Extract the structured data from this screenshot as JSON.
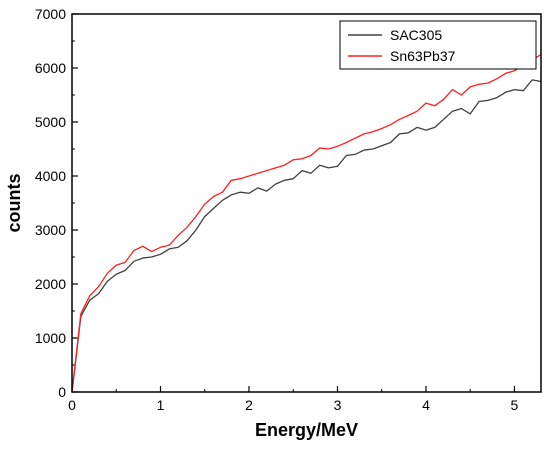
{
  "chart_data": {
    "type": "line",
    "title": "",
    "xlabel": "Energy/MeV",
    "ylabel": "counts",
    "xlim": [
      0,
      5.3
    ],
    "ylim": [
      0,
      7000
    ],
    "x_ticks": [
      0,
      1,
      2,
      3,
      4,
      5
    ],
    "y_ticks": [
      0,
      1000,
      2000,
      3000,
      4000,
      5000,
      6000,
      7000
    ],
    "grid": false,
    "legend_position": "top-right",
    "series": [
      {
        "name": "SAC305",
        "color": "#404040",
        "x": [
          0,
          0.1,
          0.2,
          0.3,
          0.4,
          0.5,
          0.6,
          0.7,
          0.8,
          0.9,
          1.0,
          1.1,
          1.2,
          1.3,
          1.4,
          1.5,
          1.6,
          1.7,
          1.8,
          1.9,
          2.0,
          2.1,
          2.2,
          2.3,
          2.4,
          2.5,
          2.6,
          2.7,
          2.8,
          2.9,
          3.0,
          3.1,
          3.2,
          3.3,
          3.4,
          3.5,
          3.6,
          3.7,
          3.8,
          3.9,
          4.0,
          4.1,
          4.2,
          4.3,
          4.4,
          4.5,
          4.6,
          4.7,
          4.8,
          4.9,
          5.0,
          5.1,
          5.2,
          5.3
        ],
        "y": [
          0,
          1400,
          1700,
          1820,
          2050,
          2180,
          2250,
          2420,
          2480,
          2500,
          2550,
          2650,
          2680,
          2800,
          3000,
          3250,
          3400,
          3550,
          3650,
          3700,
          3680,
          3780,
          3720,
          3850,
          3920,
          3950,
          4100,
          4050,
          4200,
          4150,
          4180,
          4380,
          4400,
          4480,
          4500,
          4560,
          4620,
          4780,
          4800,
          4900,
          4850,
          4900,
          5050,
          5200,
          5250,
          5150,
          5380,
          5400,
          5450,
          5550,
          5600,
          5580,
          5780,
          5750
        ]
      },
      {
        "name": "Sn63Pb37",
        "color": "#ff2020",
        "x": [
          0,
          0.1,
          0.2,
          0.3,
          0.4,
          0.5,
          0.6,
          0.7,
          0.8,
          0.9,
          1.0,
          1.1,
          1.2,
          1.3,
          1.4,
          1.5,
          1.6,
          1.7,
          1.8,
          1.9,
          2.0,
          2.1,
          2.2,
          2.3,
          2.4,
          2.5,
          2.6,
          2.7,
          2.8,
          2.9,
          3.0,
          3.1,
          3.2,
          3.3,
          3.4,
          3.5,
          3.6,
          3.7,
          3.8,
          3.9,
          4.0,
          4.1,
          4.2,
          4.3,
          4.4,
          4.5,
          4.6,
          4.7,
          4.8,
          4.9,
          5.0,
          5.1,
          5.2,
          5.3
        ],
        "y": [
          0,
          1450,
          1780,
          1950,
          2200,
          2350,
          2400,
          2620,
          2700,
          2600,
          2680,
          2720,
          2900,
          3050,
          3250,
          3480,
          3620,
          3700,
          3920,
          3950,
          4000,
          4050,
          4100,
          4150,
          4200,
          4300,
          4320,
          4380,
          4520,
          4500,
          4550,
          4620,
          4700,
          4780,
          4820,
          4880,
          4950,
          5050,
          5120,
          5200,
          5350,
          5300,
          5420,
          5600,
          5500,
          5650,
          5700,
          5720,
          5800,
          5900,
          5950,
          6050,
          6150,
          6250
        ]
      }
    ]
  }
}
